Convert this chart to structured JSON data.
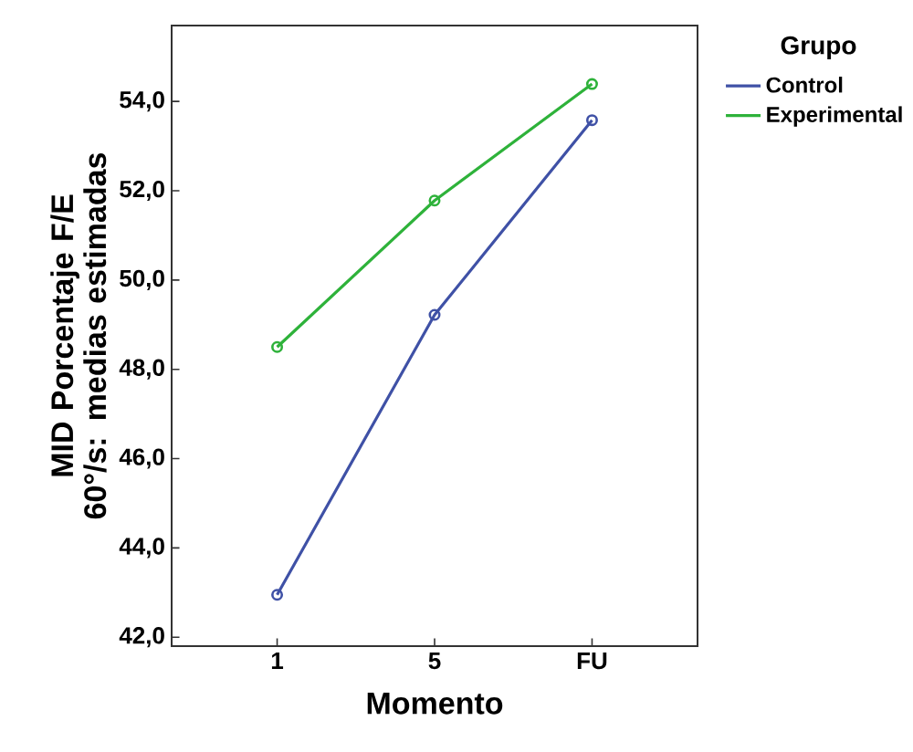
{
  "chart_data": {
    "type": "line",
    "xlabel": "Momento",
    "ylabel": "MID Porcentaje F/E 60°/s: medias estimadas",
    "legend_title": "Grupo",
    "categories": [
      "1",
      "5",
      "FU"
    ],
    "series": [
      {
        "name": "Control",
        "color": "#3f51a6",
        "values": [
          42.95,
          49.22,
          53.58
        ]
      },
      {
        "name": "Experimental",
        "color": "#2eb23a",
        "values": [
          48.5,
          51.78,
          54.39
        ]
      }
    ],
    "ylim": [
      41.8,
      55.7
    ],
    "yticks": [
      {
        "value": 42,
        "label": "42,0"
      },
      {
        "value": 44,
        "label": "44,0"
      },
      {
        "value": 46,
        "label": "46,0"
      },
      {
        "value": 48,
        "label": "48,0"
      },
      {
        "value": 50,
        "label": "50,0"
      },
      {
        "value": 52,
        "label": "52,0"
      },
      {
        "value": 54,
        "label": "54,0"
      }
    ],
    "grid": false,
    "legend": "top right",
    "marker": "circle",
    "line_style": "solid"
  }
}
